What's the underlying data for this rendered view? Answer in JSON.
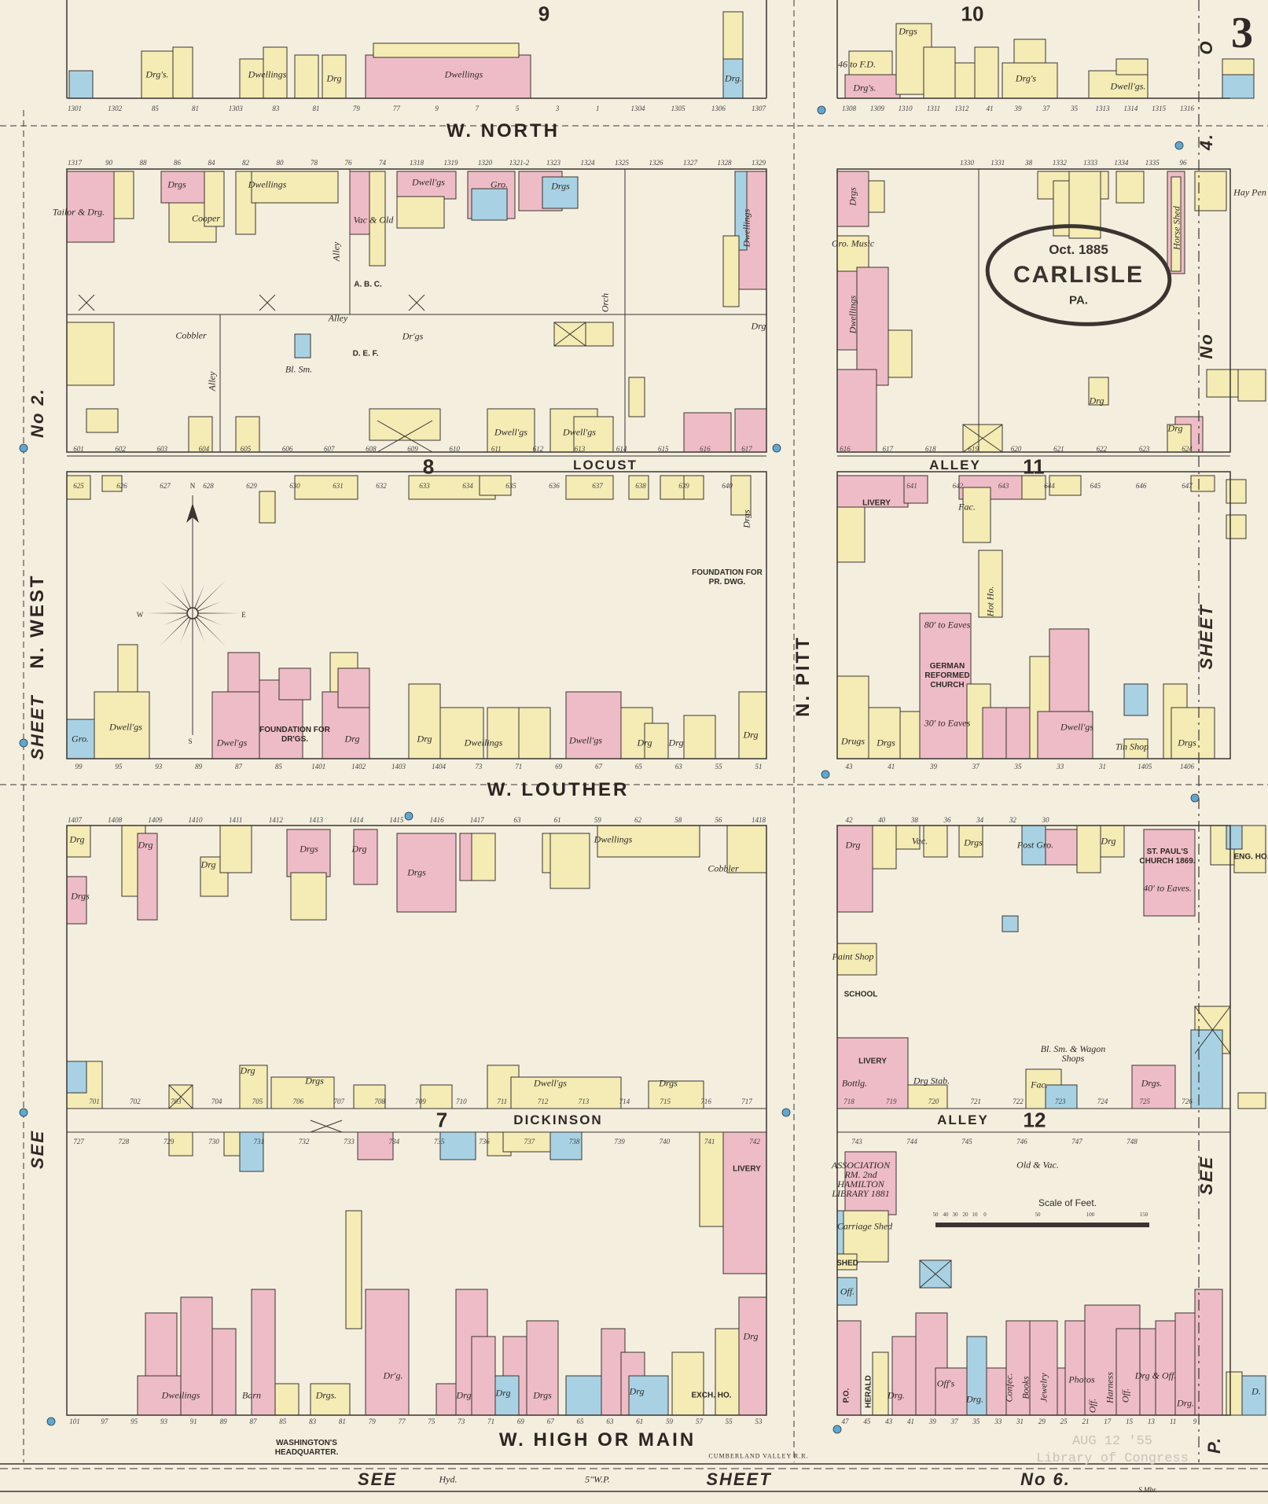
{
  "sheet_number": "3",
  "stamp": {
    "date": "Oct. 1885",
    "city": "CARLISLE",
    "state": "PA."
  },
  "library_stamp": {
    "date": "AUG 12 '55",
    "name": "Library of Congress"
  },
  "streets": {
    "north": "W. NORTH",
    "louther": "W. LOUTHER",
    "high": "W. HIGH OR MAIN",
    "pitt": "N. PITT",
    "west": "N. WEST",
    "locust": "LOCUST",
    "dickinson": "DICKINSON",
    "alley_11": "ALLEY",
    "alley_12": "ALLEY",
    "alley_small": "Alley",
    "railroad": "CUMBERLAND VALLEY R.R."
  },
  "block_numbers": {
    "b9": "9",
    "b10": "10",
    "b8": "8",
    "b11": "11",
    "b7": "7",
    "b12": "12"
  },
  "margins": {
    "left_see": "SEE",
    "left_sheet": "SHEET",
    "left_no": "No 2.",
    "right_see": "SEE",
    "right_sheet": "SHEET",
    "right_no": "No",
    "right_num": "4.",
    "bottom_see": "SEE",
    "bottom_sheet": "SHEET",
    "bottom_no": "No 6.",
    "corner_o": "O",
    "corner_p": "P.",
    "pipe": "5\"W.P.",
    "hyd": "Hyd.",
    "maker": "S.Mbr."
  },
  "scale": {
    "title": "Scale of Feet.",
    "ticks": [
      "50",
      "40",
      "30",
      "20",
      "10",
      "0",
      "50",
      "100",
      "150"
    ]
  },
  "compass": {
    "n": "N",
    "s": "S",
    "e": "E",
    "w": "W"
  },
  "colors": {
    "brick": "#eebcc6",
    "frame": "#f4ebb5",
    "stone": "#a8d2e4",
    "paper": "#f4eedf",
    "ink": "#3a3530",
    "hydrant": "#5aa9d6"
  },
  "legend_meaning": {
    "pink": "brick",
    "yellow": "frame",
    "blue": "stone"
  },
  "labels": {
    "drgs_top1": "Drg's.",
    "dwellings_top": "Dwellings",
    "drg_top2": "Drg",
    "dwellings_row": "Dwellings",
    "drg_top_right": "Drg.",
    "fd": "46 to F.D.",
    "drgs_10a": "Drgs",
    "drgs_10b": "Drg's.",
    "dwellings_10": "Dwell'gs.",
    "drgs_10c": "Drg's",
    "tailor": "Tailor & Drg.",
    "drgs_a1": "Drgs",
    "cooper": "Cooper",
    "dwellings_a": "Dwellings",
    "vac_old": "Vac & Old",
    "dwellgs_a2": "Dwell'gs",
    "gro_a": "Gro.",
    "drgs_a3": "Drgs",
    "drgs_a4": "Drgs",
    "dwellings_vert": "Dwellings",
    "abc": "A. B. C.",
    "def": "D. E. F.",
    "cobbler": "Cobbler",
    "bl_sm": "Bl. Sm.",
    "drgs_def": "Dr'gs",
    "alley_v1": "Alley",
    "alley_v2": "Alley",
    "orch": "Orch",
    "drg_a5": "Drg",
    "dwellgs_a6": "Dwell'gs",
    "dwellgs_a7": "Dwell'gs",
    "drgs_e1": "Drgs",
    "gro_music": "Gro. Music",
    "dwellings_e": "Dwellings",
    "drg_e2": "Drg",
    "horse_shed": "Horse Shed",
    "hay_pen": "Hay Pen",
    "drg_e3": "Drg",
    "foundation_pr": "FOUNDATION FOR PR. DWG.",
    "foundation_drgs": "FOUNDATION FOR DR'GS.",
    "gro_8": "Gro.",
    "dwellgs_8a": "Dwell'gs",
    "dwelgs_8b": "Dwel'gs",
    "drg_8c": "Drg",
    "drg_8d": "Drg",
    "dwellings_8": "Dwellings",
    "dwellgs_8e": "Dwell'gs",
    "drg_8f": "Drg",
    "drg_8g": "Drg",
    "drg_8h": "Drg",
    "drgs_8i": "Drgs",
    "livery_11": "LIVERY",
    "hot_ho": "Hot Ho.",
    "german_church": "GERMAN REFORMED CHURCH",
    "eaves_top": "80' to Eaves",
    "eaves_bot": "30' to Eaves",
    "drugs": "Drugs",
    "drgs_11a": "Drgs",
    "dwellgs_11": "Dwell'gs",
    "drgs_11b": "Drgs",
    "fac": "Fac.",
    "tin_shop": "Tin Shop",
    "drg_7a": "Drg",
    "drg_7b": "Drg",
    "drgs_7c": "Drgs",
    "drgs_7d": "Drgs",
    "drg_7e": "Drg",
    "drgs_7f": "Drgs",
    "dwellings_7": "Dwellings",
    "cobbler_7": "Cobbler",
    "drgs_7g": "Drgs",
    "dwellgs_7h": "Dwell'gs",
    "drgs_7i": "Drgs",
    "drg_7j": "Drg",
    "drg_7k": "Drg",
    "livery_7": "LIVERY",
    "dwellings_high": "Dwellings",
    "barn": "Barn",
    "washington": "WASHINGTON'S HEADQUARTER.",
    "drgs_h1": "Drgs.",
    "drg_h2": "Dr'g.",
    "drg_h3": "Drg",
    "drg_h4": "Drg",
    "drgs_h5": "Drgs",
    "drg_h6": "Drg",
    "drg_h7": "Drg",
    "exch": "EXCH. HO.",
    "st_pauls": "ST. PAUL'S CHURCH 1869.",
    "st_pauls_eaves": "40' to Eaves.",
    "eng_ho": "ENG. HO.",
    "post_gro": "Post Gro.",
    "drg_12a": "Drg",
    "vac_12": "Vac.",
    "drgs_12b": "Drgs",
    "drg_12c": "Drg",
    "paint_shop": "Paint Shop",
    "school": "SCHOOL",
    "livery_12": "LIVERY",
    "bottling": "Bottlg.",
    "drg_stab": "Drg Stab.",
    "bl_sm_wagon": "Bl. Sm. & Wagon Shops",
    "fac_12": "Fac.",
    "drgs_12d": "Drgs.",
    "old_vac": "Old & Vac.",
    "library": "ASSOCIATION RM. 2nd HAMILTON LIBRARY 1881",
    "carriage_shed": "Carriage Shed",
    "shed": "SHED",
    "off": "Off.",
    "po": "P.O.",
    "herald": "HERALD",
    "drg_m1": "Drg.",
    "offs": "Off's",
    "drg_m2": "Drg.",
    "confec": "Confec.",
    "books": "Books",
    "jewelry": "Jewelry",
    "photos": "Photos",
    "off_m": "Off.",
    "harness": "Harness",
    "off_m2": "Off.",
    "drg_off": "Drg & Off.",
    "drg_m3": "Drg.",
    "d_m": "D."
  },
  "addresses": {
    "north_w": [
      "1301",
      "1302",
      "85",
      "81",
      "1303",
      "83",
      "81",
      "79",
      "77",
      "9",
      "7",
      "5",
      "3",
      "1",
      "1304",
      "1305",
      "1306",
      "1307"
    ],
    "north_e": [
      "1308",
      "1309",
      "1310",
      "1311",
      "1312",
      "41",
      "39",
      "37",
      "35",
      "1313",
      "1314",
      "1315",
      "1316"
    ],
    "blockA_n": [
      "1317",
      "90",
      "88",
      "86",
      "84",
      "82",
      "80",
      "78",
      "76",
      "74",
      "1318",
      "1319",
      "1320",
      "1321-2",
      "1323",
      "1324",
      "1325",
      "1326",
      "1327",
      "1328",
      "1329"
    ],
    "blockE_n": [
      "1330",
      "1331",
      "38",
      "1332",
      "1333",
      "1334",
      "1335",
      "96"
    ],
    "locust_n": [
      "601",
      "602",
      "603",
      "604",
      "605",
      "606",
      "607",
      "608",
      "609",
      "610",
      "611",
      "612",
      "613",
      "614",
      "615",
      "616",
      "617"
    ],
    "locust_s": [
      "625",
      "626",
      "627",
      "628",
      "629",
      "630",
      "631",
      "632",
      "633",
      "634",
      "635",
      "636",
      "637",
      "638",
      "639",
      "640"
    ],
    "alley11_n": [
      "616",
      "617",
      "618",
      "619",
      "620",
      "621",
      "622",
      "623",
      "624"
    ],
    "alley11_s": [
      "641",
      "642",
      "643",
      "644",
      "645",
      "646",
      "647"
    ],
    "louther_n_w": [
      "99",
      "95",
      "93",
      "89",
      "87",
      "85",
      "1401",
      "1402",
      "1403",
      "1404",
      "73",
      "71",
      "69",
      "67",
      "65",
      "63",
      "55",
      "51"
    ],
    "louther_n_e": [
      "43",
      "41",
      "39",
      "37",
      "35",
      "33",
      "31",
      "1405",
      "1406"
    ],
    "louther_s_w": [
      "1407",
      "1408",
      "1409",
      "1410",
      "1411",
      "1412",
      "1413",
      "1414",
      "1415",
      "1416",
      "1417",
      "63",
      "61",
      "59",
      "62",
      "58",
      "56",
      "1418"
    ],
    "louther_s_e": [
      "42",
      "40",
      "38",
      "36",
      "34",
      "32",
      "30"
    ],
    "dick_n": [
      "701",
      "702",
      "703",
      "704",
      "705",
      "706",
      "707",
      "708",
      "709",
      "710",
      "711",
      "712",
      "713",
      "714",
      "715",
      "716",
      "717"
    ],
    "dick_s": [
      "727",
      "728",
      "729",
      "730",
      "731",
      "732",
      "733",
      "734",
      "735",
      "736",
      "737",
      "738",
      "739",
      "740",
      "741",
      "742"
    ],
    "alley12_n": [
      "718",
      "719",
      "720",
      "721",
      "722",
      "723",
      "724",
      "725",
      "726"
    ],
    "alley12_s": [
      "743",
      "744",
      "745",
      "746",
      "747",
      "748"
    ],
    "high_w": [
      "101",
      "97",
      "95",
      "93",
      "91",
      "89",
      "87",
      "85",
      "83",
      "81",
      "79",
      "77",
      "75",
      "73",
      "71",
      "69",
      "67",
      "65",
      "63",
      "61",
      "59",
      "57",
      "55",
      "53"
    ],
    "high_e": [
      "47",
      "45",
      "43",
      "41",
      "39",
      "37",
      "35",
      "33",
      "31",
      "29",
      "25",
      "21",
      "17",
      "15",
      "13",
      "11",
      "9"
    ]
  }
}
